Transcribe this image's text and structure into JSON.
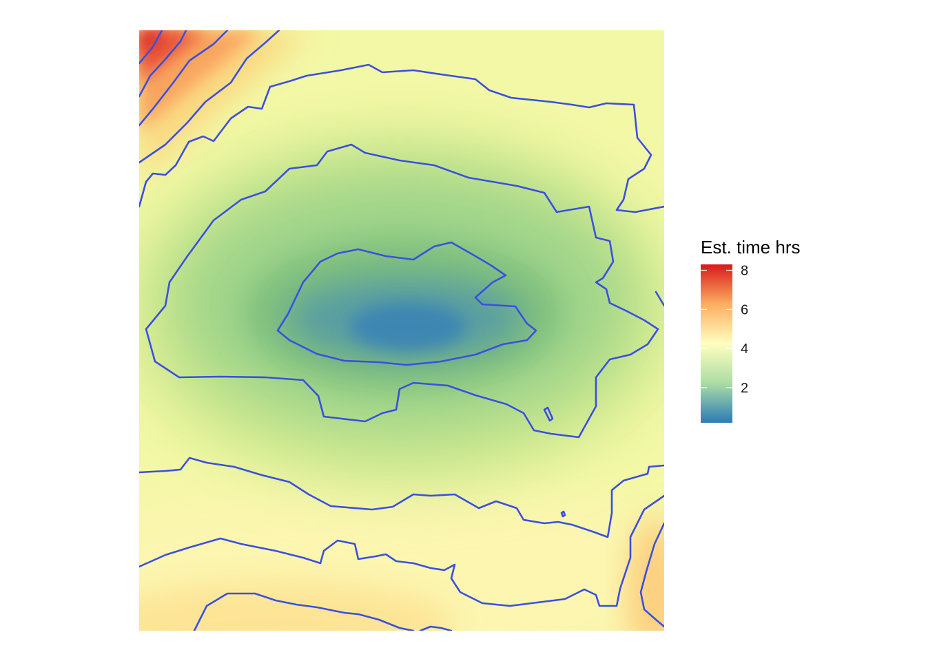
{
  "chart_data": {
    "type": "heatmap",
    "title": "",
    "xlabel": "",
    "ylabel": "",
    "grid": false,
    "legend": {
      "title": "Est. time hrs",
      "placement": "right",
      "ticks": [
        2,
        4,
        6,
        8
      ],
      "range": [
        0.2,
        8.3
      ],
      "palette": [
        "#2c7bb6",
        "#abdda4",
        "#ffffbf",
        "#fdae61",
        "#d7191c"
      ]
    },
    "surface": {
      "description": "travel-time surface with a minimum near the centre and maxima at the top-left and bottom-right corners",
      "minimum_value": 0.2,
      "maximum_value": 8.3
    },
    "contours": {
      "levels": [
        1,
        2,
        3,
        4,
        5,
        6,
        7,
        8
      ],
      "color": "#3a4fe0"
    }
  }
}
